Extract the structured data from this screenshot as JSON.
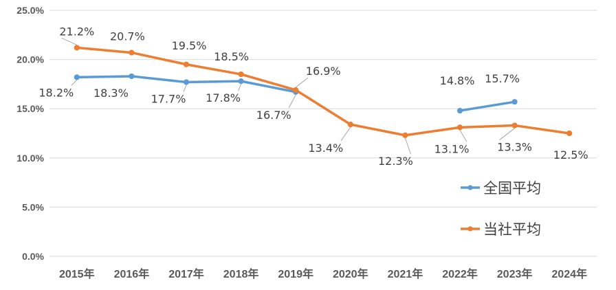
{
  "chart_data": {
    "type": "line",
    "categories": [
      "2015年",
      "2016年",
      "2017年",
      "2018年",
      "2019年",
      "2020年",
      "2021年",
      "2022年",
      "2023年",
      "2024年"
    ],
    "ylim": [
      0,
      25
    ],
    "yticks": [
      "0.0%",
      "5.0%",
      "10.0%",
      "15.0%",
      "20.0%",
      "25.0%"
    ],
    "grid": true,
    "legend_position": "right",
    "series": [
      {
        "name": "全国平均",
        "color": "#5b9bd5",
        "values": [
          18.2,
          18.3,
          17.7,
          17.8,
          16.7,
          null,
          null,
          14.8,
          15.7,
          null
        ],
        "labels": [
          "18.2%",
          "18.3%",
          "17.7%",
          "17.8%",
          "16.7%",
          null,
          null,
          "14.8%",
          "15.7%",
          null
        ]
      },
      {
        "name": "当社平均",
        "color": "#ed7d31",
        "values": [
          21.2,
          20.7,
          19.5,
          18.5,
          16.9,
          13.4,
          12.3,
          13.1,
          13.3,
          12.5
        ],
        "labels": [
          "21.2%",
          "20.7%",
          "19.5%",
          "18.5%",
          "16.9%",
          "13.4%",
          "12.3%",
          "13.1%",
          "13.3%",
          "12.5%"
        ]
      }
    ]
  }
}
